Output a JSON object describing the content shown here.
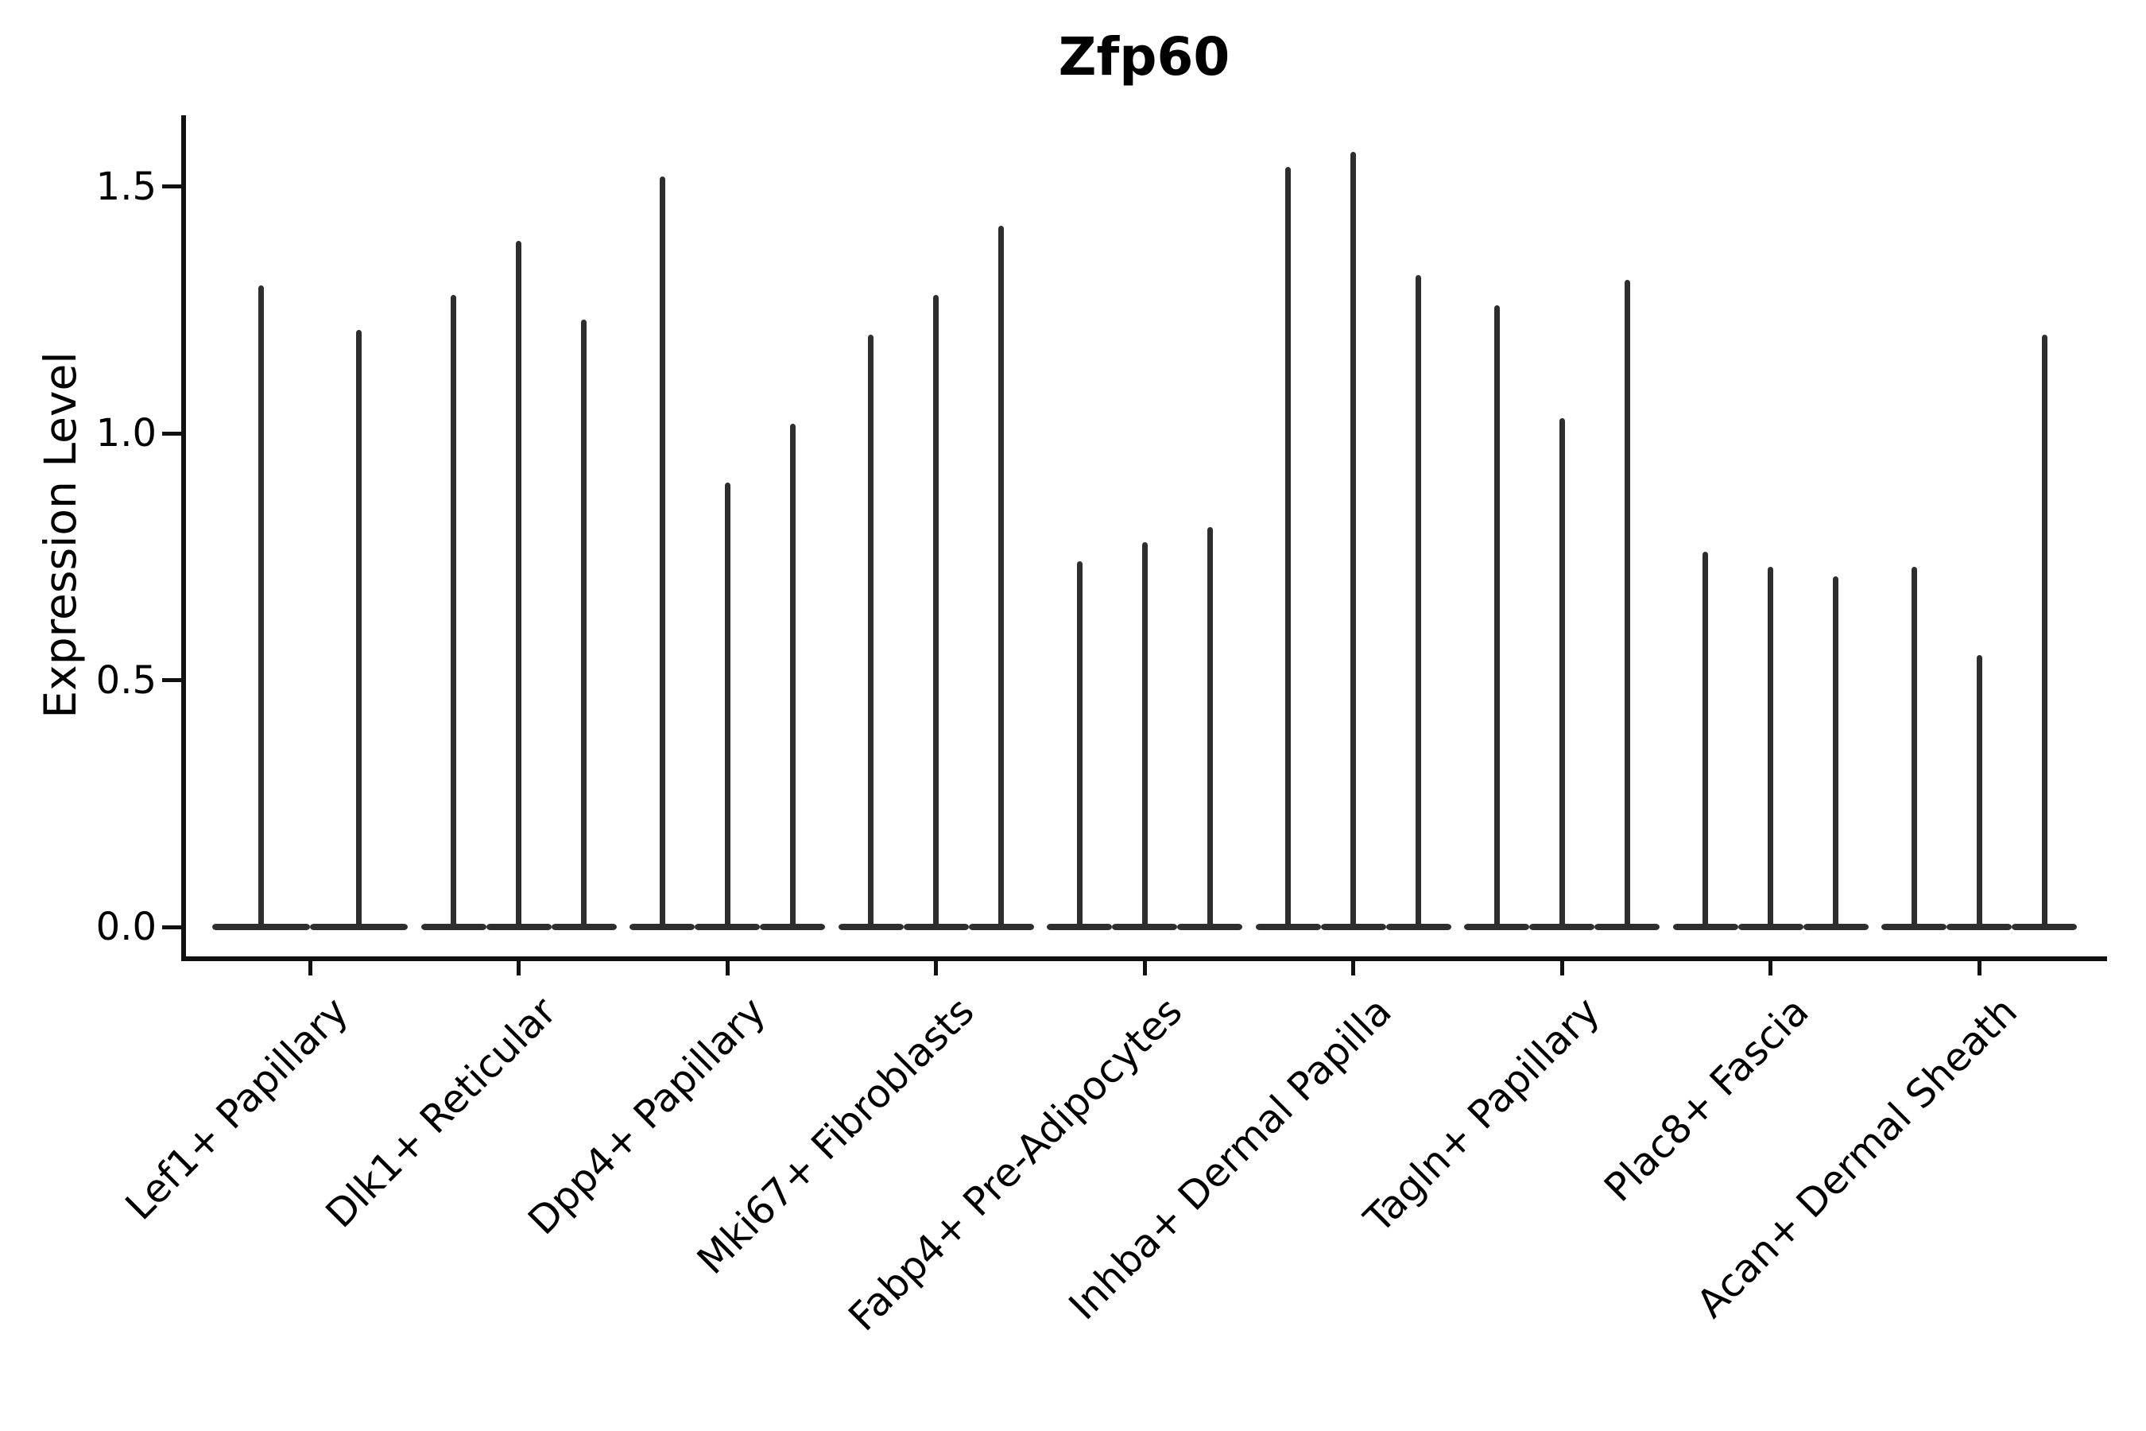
{
  "chart_data": {
    "type": "violin",
    "title": "Zfp60",
    "xlabel": "",
    "ylabel": "Expression Level",
    "yticks": [
      0.0,
      0.5,
      1.0,
      1.5
    ],
    "ytick_labels": [
      "0.0",
      "0.5",
      "1.0",
      "1.5"
    ],
    "ylim": [
      -0.07,
      1.64
    ],
    "grid": false,
    "legend": false,
    "x_tick_rotation_deg": 45,
    "style_note": "zero-inflated single-cell expression violins: each violin is a wide flat base at 0 with a thin spike rising to the maximum expression value",
    "categories": [
      "Lef1+ Papillary",
      "Dlk1+ Reticular",
      "Dpp4+ Papillary",
      "Mki67+ Fibroblasts",
      "Fabp4+ Pre-Adipocytes",
      "Inhba+ Dermal Papilla",
      "Tagln+ Papillary",
      "Plac8+ Fascia",
      "Acan+ Dermal Sheath"
    ],
    "series": [
      {
        "category": "Lef1+ Papillary",
        "violin_maxima": [
          1.3,
          1.21
        ]
      },
      {
        "category": "Dlk1+ Reticular",
        "violin_maxima": [
          1.28,
          1.39,
          1.23
        ]
      },
      {
        "category": "Dpp4+ Papillary",
        "violin_maxima": [
          1.52,
          0.9,
          1.02
        ]
      },
      {
        "category": "Mki67+ Fibroblasts",
        "violin_maxima": [
          1.2,
          1.28,
          1.42
        ]
      },
      {
        "category": "Fabp4+ Pre-Adipocytes",
        "violin_maxima": [
          0.74,
          0.78,
          0.81
        ]
      },
      {
        "category": "Inhba+ Dermal Papilla",
        "violin_maxima": [
          1.54,
          1.57,
          1.32
        ]
      },
      {
        "category": "Tagln+ Papillary",
        "violin_maxima": [
          1.26,
          1.03,
          1.31
        ]
      },
      {
        "category": "Plac8+ Fascia",
        "violin_maxima": [
          0.76,
          0.73,
          0.71
        ]
      },
      {
        "category": "Acan+ Dermal Sheath",
        "violin_maxima": [
          0.73,
          0.55,
          1.2
        ]
      }
    ],
    "colors": {
      "violin": "#2e2e2e",
      "axis": "#111111",
      "text": "#000000",
      "background": "#ffffff"
    }
  }
}
